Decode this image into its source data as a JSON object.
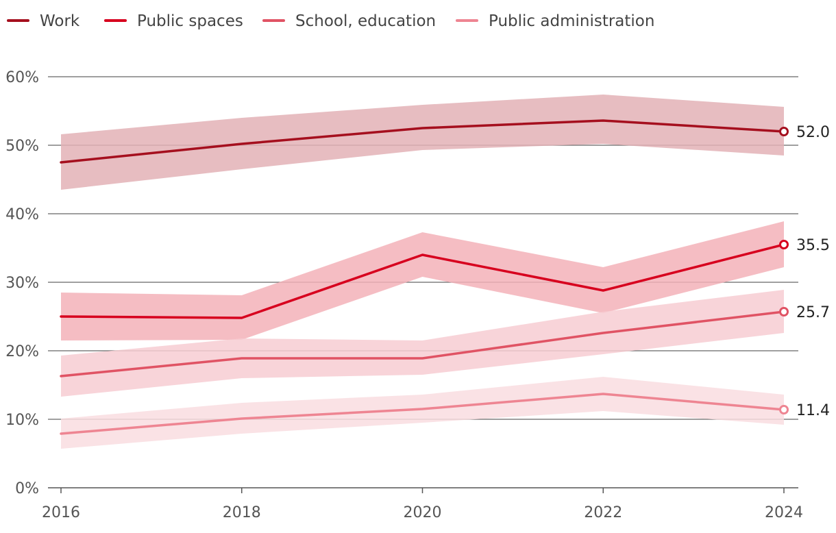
{
  "chart_data": {
    "type": "line",
    "x": [
      2016,
      2018,
      2020,
      2022,
      2024
    ],
    "x_tick_labels": [
      "2016",
      "2018",
      "2020",
      "2022",
      "2024"
    ],
    "y_tick_labels": [
      "0%",
      "10%",
      "20%",
      "30%",
      "40%",
      "50%",
      "60%"
    ],
    "ylim": [
      0,
      60
    ],
    "legend_position": "top-left",
    "grid": true,
    "series": [
      {
        "name": "Work",
        "color": "#a50f1e",
        "band_color": "#e3b2b6",
        "values": [
          47.5,
          50.2,
          52.5,
          53.6,
          52.0
        ],
        "lower": [
          43.5,
          46.5,
          49.3,
          50.2,
          48.5
        ],
        "upper": [
          51.6,
          54.0,
          55.9,
          57.4,
          55.6
        ],
        "end_label": "52.0"
      },
      {
        "name": "Public spaces",
        "color": "#d7001e",
        "band_color": "#f3b1b9",
        "values": [
          25.0,
          24.8,
          34.0,
          28.8,
          35.5
        ],
        "lower": [
          21.5,
          21.6,
          30.8,
          25.5,
          32.2
        ],
        "upper": [
          28.5,
          28.1,
          37.3,
          32.2,
          38.9
        ],
        "end_label": "35.5"
      },
      {
        "name": "School, education",
        "color": "#e05364",
        "band_color": "#f7ccd2",
        "values": [
          16.3,
          18.9,
          18.9,
          22.6,
          25.7
        ],
        "lower": [
          13.3,
          16.0,
          16.5,
          19.5,
          22.6
        ],
        "upper": [
          19.3,
          21.8,
          21.5,
          25.7,
          28.9
        ],
        "end_label": "25.7"
      },
      {
        "name": "Public administration",
        "color": "#ee8592",
        "band_color": "#f9dde0",
        "values": [
          7.9,
          10.1,
          11.5,
          13.7,
          11.4
        ],
        "lower": [
          5.7,
          7.9,
          9.5,
          11.2,
          9.2
        ],
        "upper": [
          10.1,
          12.4,
          13.6,
          16.2,
          13.6
        ],
        "end_label": "11.4"
      }
    ]
  }
}
